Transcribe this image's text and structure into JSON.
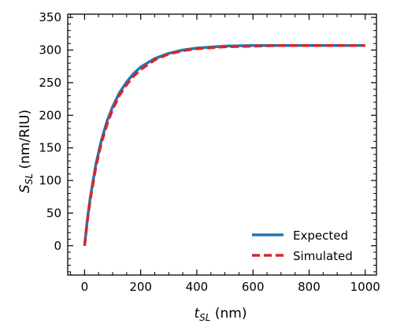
{
  "chart_data": {
    "type": "line",
    "title": "",
    "xlabel": {
      "main": "t",
      "sub": "SL",
      "unit": " (nm)"
    },
    "ylabel": {
      "main": "S",
      "sub": "SL",
      "unit": " (nm/RIU)"
    },
    "xlim": [
      -60,
      1040
    ],
    "ylim": [
      -45,
      355
    ],
    "xticks": [
      0,
      200,
      400,
      600,
      800,
      1000
    ],
    "yticks": [
      0,
      50,
      100,
      150,
      200,
      250,
      300,
      350
    ],
    "xtick_labels": [
      "0",
      "200",
      "400",
      "600",
      "800",
      "1000"
    ],
    "ytick_labels": [
      "0",
      "50",
      "100",
      "150",
      "200",
      "250",
      "300",
      "350"
    ],
    "grid": false,
    "legend_position": "bottom-right",
    "series": [
      {
        "name": "Expected",
        "color": "#1f77b4",
        "style": "solid",
        "x": [
          0,
          10,
          20,
          40,
          60,
          80,
          100,
          125,
          150,
          175,
          200,
          250,
          300,
          350,
          400,
          500,
          600,
          700,
          800,
          900,
          1000
        ],
        "y": [
          0,
          40,
          73,
          124,
          162,
          191,
          213,
          235,
          251,
          264,
          274,
          287,
          295,
          300,
          303,
          306,
          307,
          307,
          307,
          307,
          307
        ]
      },
      {
        "name": "Simulated",
        "color": "#d62728",
        "style": "dashed",
        "x": [
          0,
          10,
          20,
          40,
          60,
          80,
          100,
          125,
          150,
          175,
          200,
          250,
          300,
          350,
          400,
          500,
          600,
          700,
          800,
          900,
          1000
        ],
        "y": [
          0,
          38,
          70,
          120,
          158,
          186,
          209,
          231,
          247,
          260,
          270,
          285,
          294,
          299,
          302,
          305,
          306,
          307,
          307,
          307,
          307
        ]
      }
    ]
  }
}
